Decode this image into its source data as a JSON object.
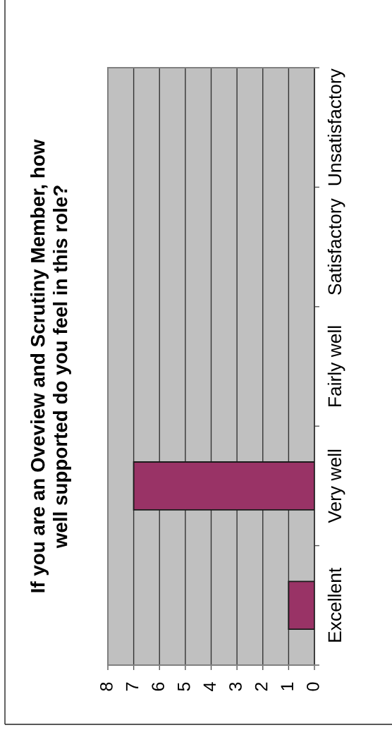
{
  "chart_data": {
    "type": "bar",
    "orientation": "horizontal",
    "title": "If you are an Oveview and Scrutiny Member, how\nwell supported do you feel in this role?",
    "categories": [
      "Unsatisfactory",
      "Satisfactory",
      "Fairly well",
      "Very well",
      "Excellent"
    ],
    "values": [
      0,
      0,
      0,
      7,
      1
    ],
    "color": "#993366",
    "xlim": [
      8,
      0
    ],
    "xticks": [
      0,
      1,
      2,
      3,
      4,
      5,
      6,
      7,
      8
    ],
    "grid": "x"
  }
}
